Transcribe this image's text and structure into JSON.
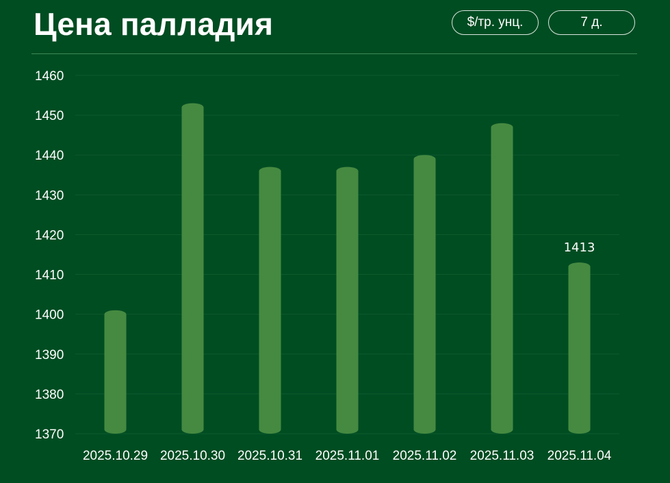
{
  "header": {
    "title": "Цена палладия",
    "unit_button": "$/тр. унц.",
    "range_button": "7 д."
  },
  "colors": {
    "background": "#004d22",
    "bar": "#468a41",
    "grid": "#0d5a2c"
  },
  "chart_data": {
    "type": "bar",
    "title": "Цена палладия",
    "xlabel": "",
    "ylabel": "",
    "categories": [
      "2025.10.29",
      "2025.10.30",
      "2025.10.31",
      "2025.11.01",
      "2025.11.02",
      "2025.11.03",
      "2025.11.04"
    ],
    "values": [
      1401,
      1453,
      1437,
      1437,
      1440,
      1448,
      1413
    ],
    "ylim": [
      1370,
      1460
    ],
    "yticks": [
      1370,
      1380,
      1390,
      1400,
      1410,
      1420,
      1430,
      1440,
      1450,
      1460
    ],
    "data_labels": [
      {
        "category": "2025.11.04",
        "text": "1413"
      }
    ],
    "grid": true,
    "legend": "none"
  }
}
